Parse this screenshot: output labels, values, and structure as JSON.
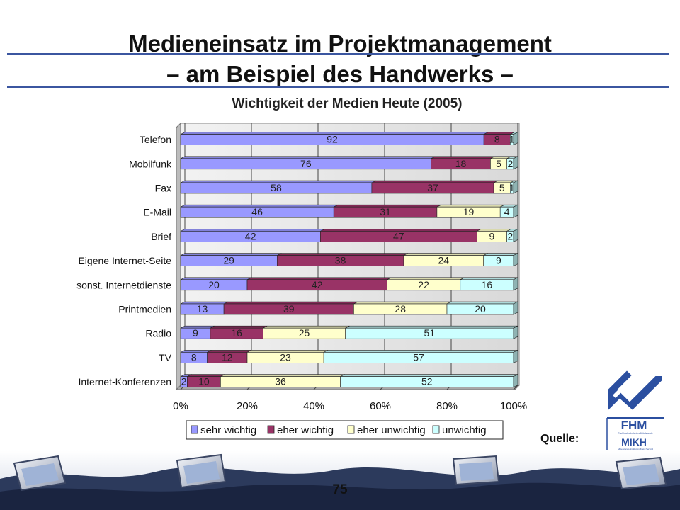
{
  "slide": {
    "title_line1": "Medieneinsatz im Projektmanagement",
    "title_line2": "– am Beispiel des Handwerks –",
    "source_label": "Quelle:",
    "page_number": "75"
  },
  "logo": {
    "text": "FHM",
    "sub_text": "Fachhochschule des Mittelstands",
    "text2": "MIKH",
    "sub_text2": "Mittelstands-Institut im Kreis Herford"
  },
  "colors": {
    "accent_rule": "#3b56a0",
    "sehr_wichtig": "#9999ff",
    "eher_wichtig": "#993366",
    "eher_unwichtig": "#ffffcc",
    "unwichtig": "#ccffff"
  },
  "chart_data": {
    "type": "bar",
    "orientation": "horizontal",
    "stacked": "percent",
    "title": "Wichtigkeit der Medien Heute (2005)",
    "categories": [
      "Telefon",
      "Mobilfunk",
      "Fax",
      "E-Mail",
      "Brief",
      "Eigene Internet-Seite",
      "sonst. Internetdienste",
      "Printmedien",
      "Radio",
      "TV",
      "Internet-Konferenzen"
    ],
    "series": [
      {
        "name": "sehr wichtig",
        "color": "#9999ff",
        "values": [
          92,
          76,
          58,
          46,
          42,
          29,
          20,
          13,
          9,
          8,
          2
        ]
      },
      {
        "name": "eher wichtig",
        "color": "#993366",
        "values": [
          8,
          18,
          37,
          31,
          47,
          38,
          42,
          39,
          16,
          12,
          10
        ]
      },
      {
        "name": "eher unwichtig",
        "color": "#ffffcc",
        "values": [
          0,
          5,
          5,
          19,
          9,
          24,
          22,
          28,
          25,
          23,
          36
        ]
      },
      {
        "name": "unwichtig",
        "color": "#ccffff",
        "values": [
          1,
          2,
          1,
          4,
          2,
          9,
          16,
          20,
          51,
          57,
          52
        ]
      }
    ],
    "xlim": [
      0,
      100
    ],
    "x_ticks": [
      "0%",
      "20%",
      "40%",
      "60%",
      "80%",
      "100%"
    ],
    "grid": true,
    "legend_position": "bottom"
  }
}
